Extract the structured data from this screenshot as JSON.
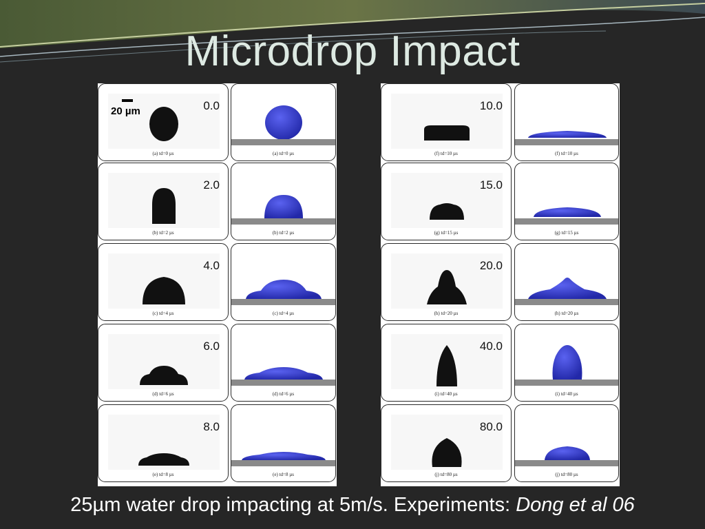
{
  "title": "Microdrop Impact",
  "scale_label": "20 µm",
  "caption": {
    "text": "25µm water drop impacting at 5m/s.  Experiments: ",
    "cite": "Dong et al 06"
  },
  "colors": {
    "background": "#262626",
    "title": "#dde9e2",
    "drop_sim": "#3a3fd0",
    "substrate": "#8a8a8a"
  },
  "frames": [
    {
      "time": "0.0",
      "exp_caption": "(a) td=0 µs",
      "sim_caption": "(a) td=0 µs"
    },
    {
      "time": "2.0",
      "exp_caption": "(b) td=2 µs",
      "sim_caption": "(b) td=2 µs"
    },
    {
      "time": "4.0",
      "exp_caption": "(c) td=4 µs",
      "sim_caption": "(c) td=4 µs"
    },
    {
      "time": "6.0",
      "exp_caption": "(d) td=6 µs",
      "sim_caption": "(d) td=6 µs"
    },
    {
      "time": "8.0",
      "exp_caption": "(e) td=8 µs",
      "sim_caption": "(e) td=8 µs"
    },
    {
      "time": "10.0",
      "exp_caption": "(f) td=10 µs",
      "sim_caption": "(f) td=10 µs"
    },
    {
      "time": "15.0",
      "exp_caption": "(g) td=15 µs",
      "sim_caption": "(g) td=15 µs"
    },
    {
      "time": "20.0",
      "exp_caption": "(h) td=20 µs",
      "sim_caption": "(h) td=20 µs"
    },
    {
      "time": "40.0",
      "exp_caption": "(i) td=40 µs",
      "sim_caption": "(i) td=40 µs"
    },
    {
      "time": "80.0",
      "exp_caption": "(j) td=80 µs",
      "sim_caption": "(j) td=80 µs"
    }
  ]
}
